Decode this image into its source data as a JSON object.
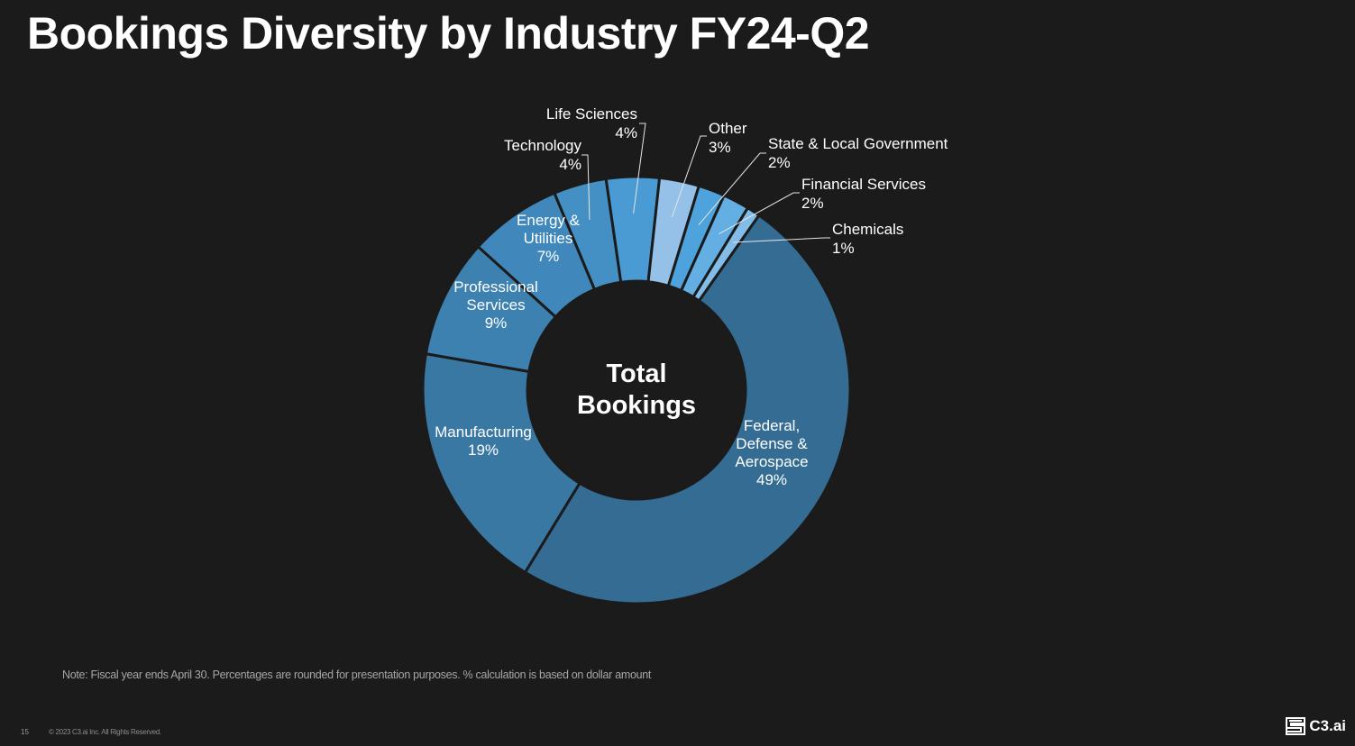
{
  "slide": {
    "title": "Bookings Diversity by Industry FY24-Q2",
    "note": "Note:  Fiscal year ends April 30. Percentages are rounded for presentation purposes. % calculation is based on dollar amount",
    "page_number": "15",
    "copyright": "© 2023 C3.ai Inc. All Rights Reserved.",
    "logo_text": "C3.ai",
    "logo_icon": "c3-logo-icon"
  },
  "chart_data": {
    "type": "pie",
    "variant": "donut",
    "title": "Bookings Diversity by Industry FY24-Q2",
    "center_label": [
      "Total",
      "Bookings"
    ],
    "unit": "%",
    "legend": "none (data labels on slices)",
    "slices": [
      {
        "name": "Federal, Defense & Aerospace",
        "label_lines": [
          "Federal,",
          "Defense &",
          "Aerospace"
        ],
        "value": 49,
        "color": "#356c94",
        "label_position": "inside"
      },
      {
        "name": "Manufacturing",
        "label_lines": [
          "Manufacturing"
        ],
        "value": 19,
        "color": "#3a78a4",
        "label_position": "inside"
      },
      {
        "name": "Professional Services",
        "label_lines": [
          "Professional",
          "Services"
        ],
        "value": 9,
        "color": "#3d81b0",
        "label_position": "inside"
      },
      {
        "name": "Energy & Utilities",
        "label_lines": [
          "Energy &",
          "Utilities"
        ],
        "value": 7,
        "color": "#4088bb",
        "label_position": "inside"
      },
      {
        "name": "Technology",
        "label_lines": [
          "Technology"
        ],
        "value": 4,
        "color": "#448fc4",
        "label_position": "outside"
      },
      {
        "name": "Life Sciences",
        "label_lines": [
          "Life Sciences"
        ],
        "value": 4,
        "color": "#4a9ad3",
        "label_position": "outside"
      },
      {
        "name": "Other",
        "label_lines": [
          "Other"
        ],
        "value": 3,
        "color": "#95c1e8",
        "label_position": "outside"
      },
      {
        "name": "State & Local Government",
        "label_lines": [
          "State & Local Government"
        ],
        "value": 2,
        "color": "#4ea3dc",
        "label_position": "outside"
      },
      {
        "name": "Financial Services",
        "label_lines": [
          "Financial Services"
        ],
        "value": 2,
        "color": "#63aee2",
        "label_position": "outside"
      },
      {
        "name": "Chemicals",
        "label_lines": [
          "Chemicals"
        ],
        "value": 1,
        "color": "#82bce8",
        "label_position": "outside"
      }
    ]
  }
}
